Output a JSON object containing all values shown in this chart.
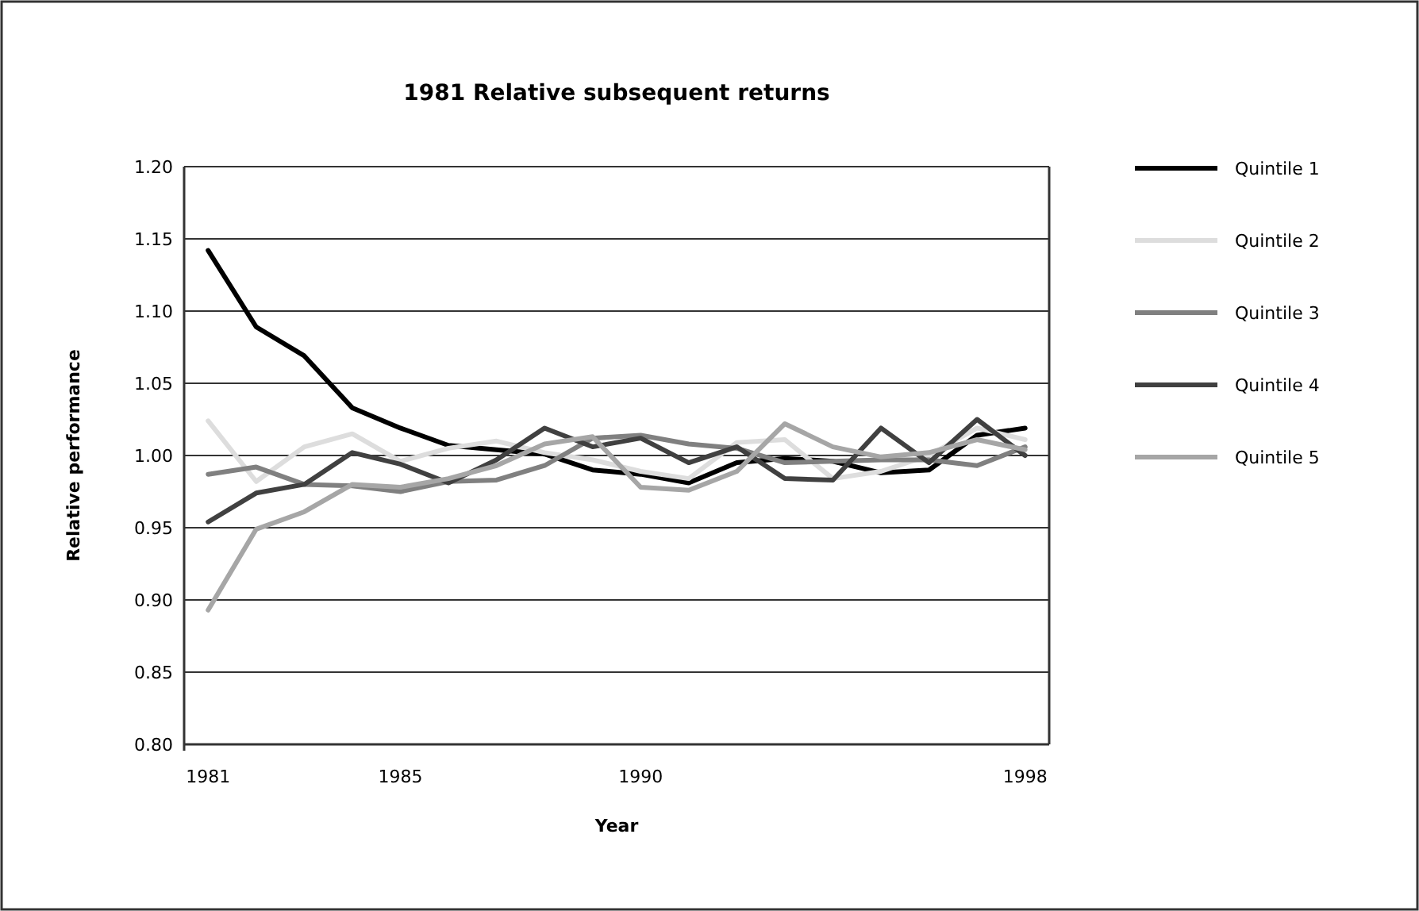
{
  "chart_data": {
    "type": "line",
    "title": "1981 Relative subsequent returns",
    "xlabel": "Year",
    "ylabel": "Relative performance",
    "categories": [
      "1981",
      null,
      null,
      null,
      "1985",
      null,
      null,
      null,
      null,
      "1990",
      null,
      null,
      null,
      null,
      null,
      null,
      null,
      "1998"
    ],
    "ylim": [
      0.8,
      1.2
    ],
    "yticks": [
      {
        "value": 0.8,
        "label": "0.80"
      },
      {
        "value": 0.85,
        "label": "0.85"
      },
      {
        "value": 0.9,
        "label": "0.90"
      },
      {
        "value": 0.95,
        "label": "0.95"
      },
      {
        "value": 1.0,
        "label": "1.00"
      },
      {
        "value": 1.05,
        "label": "1.05"
      },
      {
        "value": 1.1,
        "label": "1.10"
      },
      {
        "value": 1.15,
        "label": "1.15"
      },
      {
        "value": 1.2,
        "label": "1.20"
      }
    ],
    "grid": "y",
    "legend": "right",
    "marker": "none",
    "line_style": "solid",
    "series": [
      {
        "name": "Quintile 1",
        "color": "#000000",
        "values": [
          1.142,
          1.089,
          1.069,
          1.033,
          1.019,
          1.007,
          1.004,
          1.001,
          0.99,
          0.987,
          0.981,
          0.995,
          0.998,
          0.996,
          0.988,
          0.99,
          1.014,
          1.019
        ]
      },
      {
        "name": "Quintile 2",
        "color": "#dddddd",
        "values": [
          1.024,
          0.982,
          1.006,
          1.015,
          0.996,
          1.005,
          1.01,
          1.002,
          0.997,
          0.989,
          0.984,
          1.009,
          1.011,
          0.984,
          0.989,
          1.0,
          1.019,
          1.011
        ]
      },
      {
        "name": "Quintile 3",
        "color": "#808080",
        "values": [
          0.987,
          0.992,
          0.98,
          0.979,
          0.975,
          0.982,
          0.983,
          0.993,
          1.012,
          1.014,
          1.008,
          1.005,
          0.995,
          0.996,
          0.997,
          0.997,
          0.993,
          1.006
        ]
      },
      {
        "name": "Quintile 4",
        "color": "#404040",
        "values": [
          0.954,
          0.974,
          0.98,
          1.002,
          0.994,
          0.981,
          0.997,
          1.019,
          1.006,
          1.012,
          0.995,
          1.006,
          0.984,
          0.983,
          1.019,
          0.995,
          1.025,
          1.0
        ]
      },
      {
        "name": "Quintile 5",
        "color": "#a6a6a6",
        "values": [
          0.893,
          0.949,
          0.961,
          0.98,
          0.978,
          0.984,
          0.993,
          1.008,
          1.013,
          0.978,
          0.976,
          0.989,
          1.022,
          1.006,
          0.999,
          1.002,
          1.011,
          1.004
        ]
      }
    ]
  }
}
